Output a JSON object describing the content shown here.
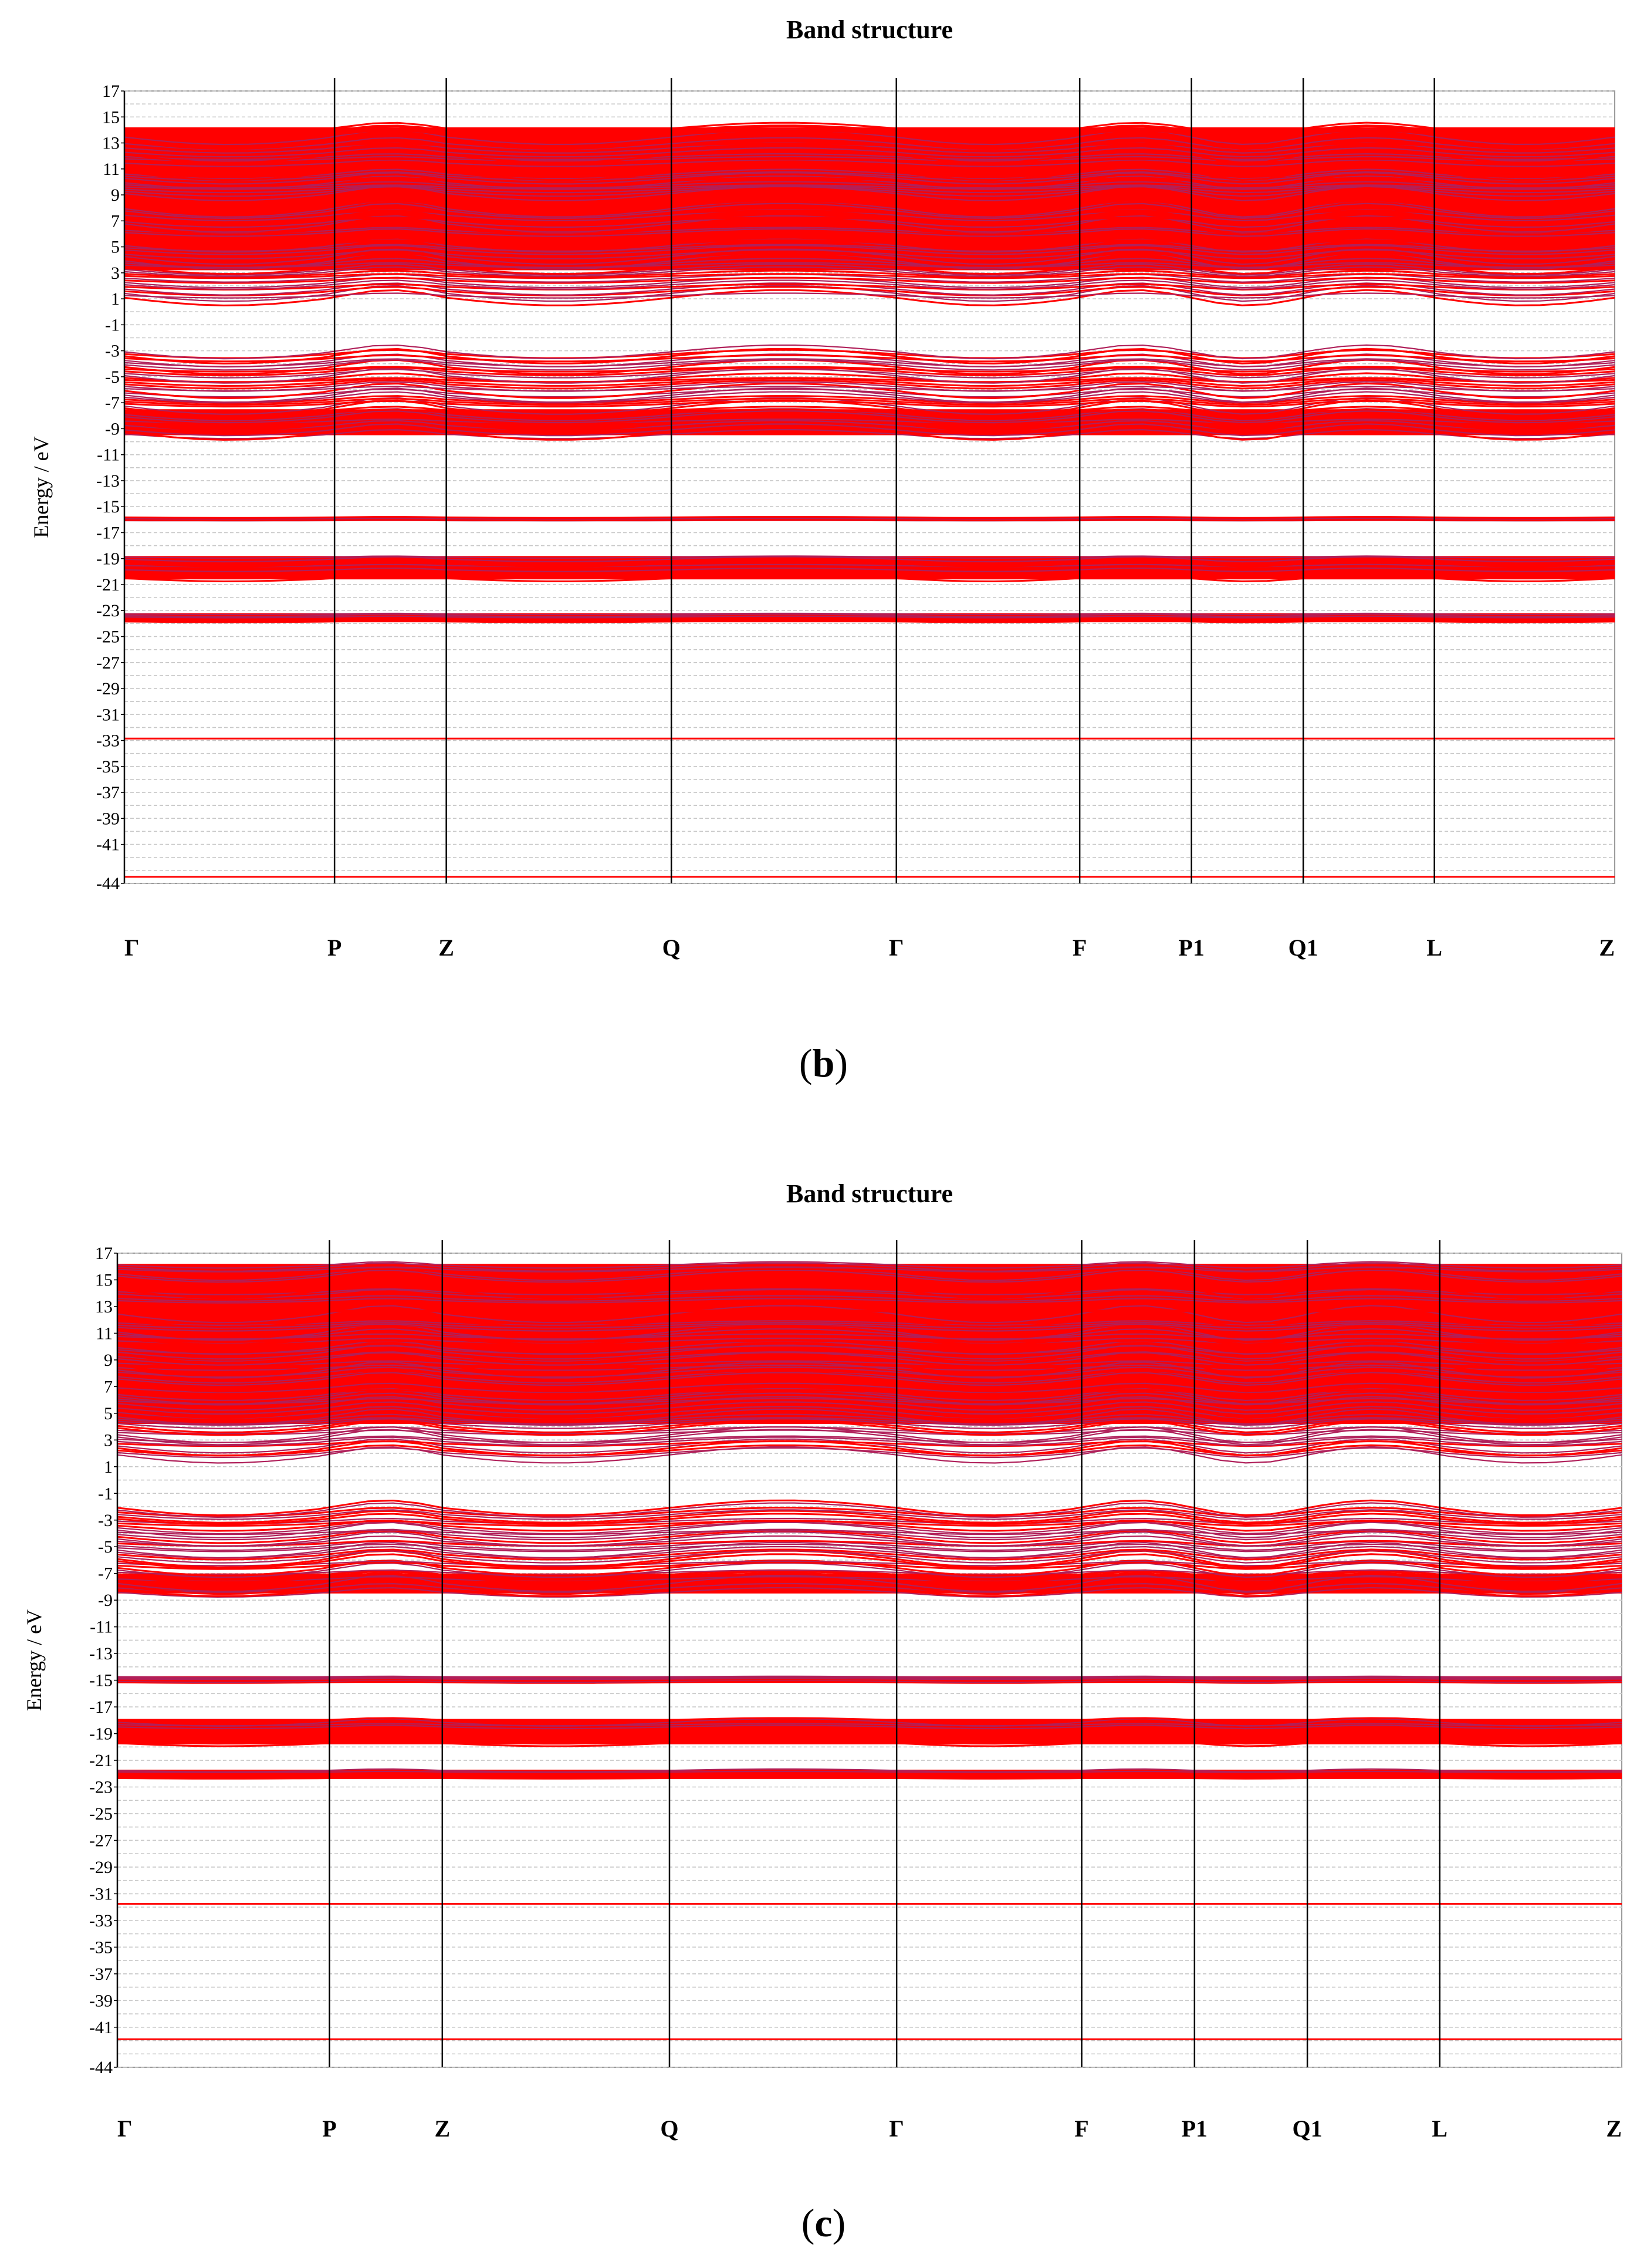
{
  "chart_data": [
    {
      "type": "line",
      "panel": "b",
      "title": "Band structure",
      "ylabel": "Energy / eV",
      "ylim": [
        -44,
        17
      ],
      "yticks": [
        "17",
        "15",
        "13",
        "11",
        "9",
        "7",
        "5",
        "3",
        "1",
        "-1",
        "-3",
        "-5",
        "-7",
        "-9",
        "-11",
        "-13",
        "-15",
        "-17",
        "-19",
        "-21",
        "-23",
        "-25",
        "-27",
        "-29",
        "-31",
        "-33",
        "-35",
        "-37",
        "-39",
        "-41",
        "-44"
      ],
      "kpoints": [
        {
          "label": "Γ",
          "pos": 0.0
        },
        {
          "label": "P",
          "pos": 0.141
        },
        {
          "label": "Z",
          "pos": 0.216
        },
        {
          "label": "Q",
          "pos": 0.367
        },
        {
          "label": "Γ",
          "pos": 0.518
        },
        {
          "label": "F",
          "pos": 0.641
        },
        {
          "label": "P1",
          "pos": 0.716
        },
        {
          "label": "Q1",
          "pos": 0.791
        },
        {
          "label": "L",
          "pos": 0.879
        },
        {
          "label": "Z",
          "pos": 1.0
        }
      ],
      "bands": [
        {
          "name": "conduction",
          "range": [
            1.0,
            14.2
          ],
          "dense_from": 3.2
        },
        {
          "name": "valence",
          "range": [
            -9.5,
            -3.0
          ],
          "dense_to": -7.5
        },
        {
          "name": "semicore-1",
          "range": [
            -16.1,
            -15.8
          ]
        },
        {
          "name": "semicore-2",
          "range": [
            -20.6,
            -18.8
          ]
        },
        {
          "name": "semicore-3",
          "range": [
            -23.9,
            -23.2
          ]
        },
        {
          "name": "core-1",
          "range": [
            -32.9,
            -32.8
          ]
        },
        {
          "name": "core-2",
          "range": [
            -43.6,
            -43.4
          ]
        }
      ],
      "grid": true
    },
    {
      "type": "line",
      "panel": "c",
      "title": "Band structure",
      "ylabel": "Energy / eV",
      "ylim": [
        -44,
        17
      ],
      "yticks": [
        "17",
        "15",
        "13",
        "11",
        "9",
        "7",
        "5",
        "3",
        "1",
        "-1",
        "-3",
        "-5",
        "-7",
        "-9",
        "-11",
        "-13",
        "-15",
        "-17",
        "-19",
        "-21",
        "-23",
        "-25",
        "-27",
        "-29",
        "-31",
        "-33",
        "-35",
        "-37",
        "-39",
        "-41",
        "-44"
      ],
      "kpoints": [
        {
          "label": "Γ",
          "pos": 0.0
        },
        {
          "label": "P",
          "pos": 0.141
        },
        {
          "label": "Z",
          "pos": 0.216
        },
        {
          "label": "Q",
          "pos": 0.367
        },
        {
          "label": "Γ",
          "pos": 0.518
        },
        {
          "label": "F",
          "pos": 0.641
        },
        {
          "label": "P1",
          "pos": 0.716
        },
        {
          "label": "Q1",
          "pos": 0.791
        },
        {
          "label": "L",
          "pos": 0.879
        },
        {
          "label": "Z",
          "pos": 1.0
        }
      ],
      "bands": [
        {
          "name": "conduction",
          "range": [
            1.8,
            16.2
          ],
          "dense_from": 4.2
        },
        {
          "name": "valence",
          "range": [
            -8.5,
            -2.0
          ],
          "dense_to": -7.0
        },
        {
          "name": "semicore-1",
          "range": [
            -15.2,
            -14.7
          ]
        },
        {
          "name": "semicore-2",
          "range": [
            -19.8,
            -17.9
          ]
        },
        {
          "name": "semicore-3",
          "range": [
            -22.4,
            -21.7
          ]
        },
        {
          "name": "core-1",
          "range": [
            -31.8,
            -31.7
          ]
        },
        {
          "name": "core-2",
          "range": [
            -42.0,
            -41.8
          ]
        }
      ],
      "grid": true
    }
  ],
  "captions": {
    "b": {
      "open": "(",
      "letter": "b",
      "close": ")"
    },
    "c": {
      "open": "(",
      "letter": "c",
      "close": ")"
    }
  },
  "colors": {
    "band": "#ff0000",
    "band_dark": "#b0205a",
    "grid": "#c8c8c8",
    "axis": "#000000"
  }
}
